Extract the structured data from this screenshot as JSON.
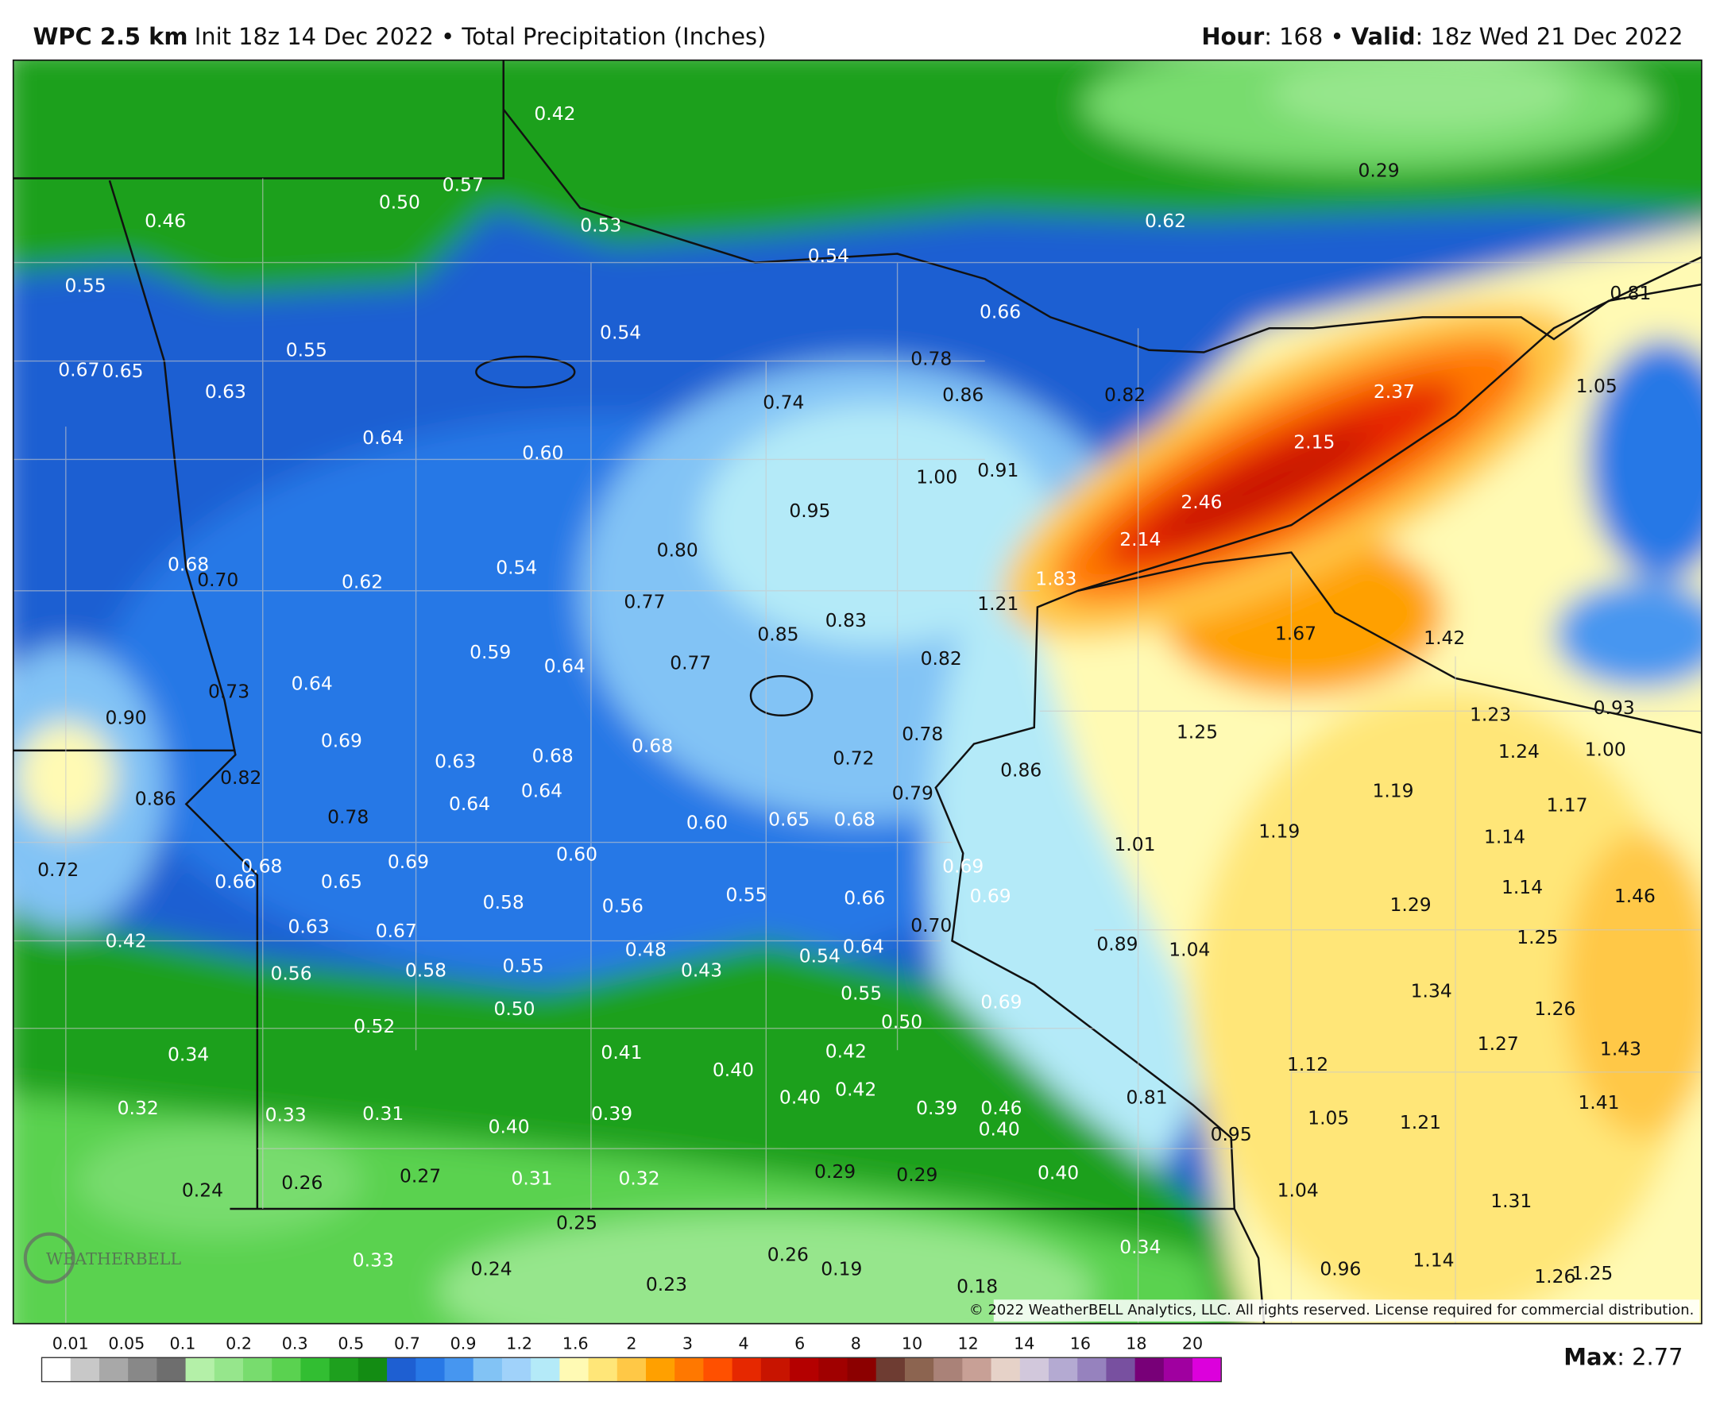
{
  "header": {
    "model": "WPC 2.5 km",
    "description": "Init 18z 14 Dec 2022 • Total Precipitation (Inches)",
    "hour_label": "Hour",
    "hour": ": 168 • ",
    "valid_label": "Valid",
    "valid": ": 18z Wed 21 Dec 2022"
  },
  "map": {
    "labels": [
      "0.42",
      "0.57",
      "0.50",
      "0.46",
      "0.53",
      "0.54",
      "0.29",
      "0.62",
      "0.55",
      "0.54",
      "0.66",
      "0.81",
      "0.55",
      "0.67",
      "0.65",
      "0.63",
      "0.78",
      "0.86",
      "0.74",
      "0.82",
      "2.37",
      "1.05",
      "0.64",
      "0.60",
      "2.15",
      "1.00",
      "0.91",
      "0.95",
      "2.46",
      "0.80",
      "2.14",
      "0.68",
      "0.70",
      "0.62",
      "0.54",
      "1.83",
      "0.77",
      "1.21",
      "0.83",
      "0.85",
      "1.67",
      "1.42",
      "0.59",
      "0.64",
      "0.77",
      "0.82",
      "0.73",
      "0.64",
      "1.23",
      "0.93",
      "0.90",
      "1.25",
      "0.78",
      "0.69",
      "0.68",
      "0.63",
      "0.68",
      "0.72",
      "1.24",
      "1.00",
      "0.82",
      "0.86",
      "0.64",
      "0.64",
      "0.79",
      "0.86",
      "1.19",
      "1.17",
      "0.78",
      "0.60",
      "0.65",
      "0.68",
      "1.19",
      "1.01",
      "1.14",
      "0.72",
      "0.68",
      "0.66",
      "0.65",
      "0.69",
      "0.60",
      "0.69",
      "0.58",
      "0.56",
      "0.55",
      "0.66",
      "0.69",
      "1.14",
      "1.29",
      "1.46",
      "0.63",
      "0.67",
      "0.70",
      "0.42",
      "1.25",
      "0.89",
      "1.04",
      "0.48",
      "0.43",
      "0.54",
      "0.64",
      "0.56",
      "0.58",
      "0.55",
      "0.55",
      "0.69",
      "1.34",
      "0.50",
      "0.52",
      "0.50",
      "1.26",
      "0.34",
      "0.41",
      "0.42",
      "1.27",
      "1.43",
      "1.12",
      "0.40",
      "0.40",
      "0.42",
      "0.81",
      "0.32",
      "0.33",
      "0.31",
      "0.39",
      "0.39",
      "0.46",
      "0.40",
      "0.40",
      "1.05",
      "1.21",
      "1.41",
      "0.95",
      "0.24",
      "0.26",
      "0.27",
      "0.31",
      "0.32",
      "0.29",
      "0.29",
      "0.40",
      "1.04",
      "1.31",
      "0.25",
      "0.33",
      "0.24",
      "0.26",
      "0.19",
      "0.34",
      "0.23",
      "0.18",
      "0.96",
      "1.14",
      "1.26",
      "1.25"
    ],
    "logo": "WEATHERBELL",
    "copyright": "© 2022 WeatherBELL Analytics, LLC. All rights reserved. License required for commercial distribution."
  },
  "colorbar": {
    "ticks": [
      "0.01",
      "0.05",
      "0.1",
      "0.2",
      "0.3",
      "0.5",
      "0.7",
      "0.9",
      "1.2",
      "1.6",
      "2",
      "3",
      "4",
      "6",
      "8",
      "10",
      "12",
      "14",
      "16",
      "18",
      "20"
    ],
    "max_label": "Max",
    "max_value": ": 2.77"
  }
}
